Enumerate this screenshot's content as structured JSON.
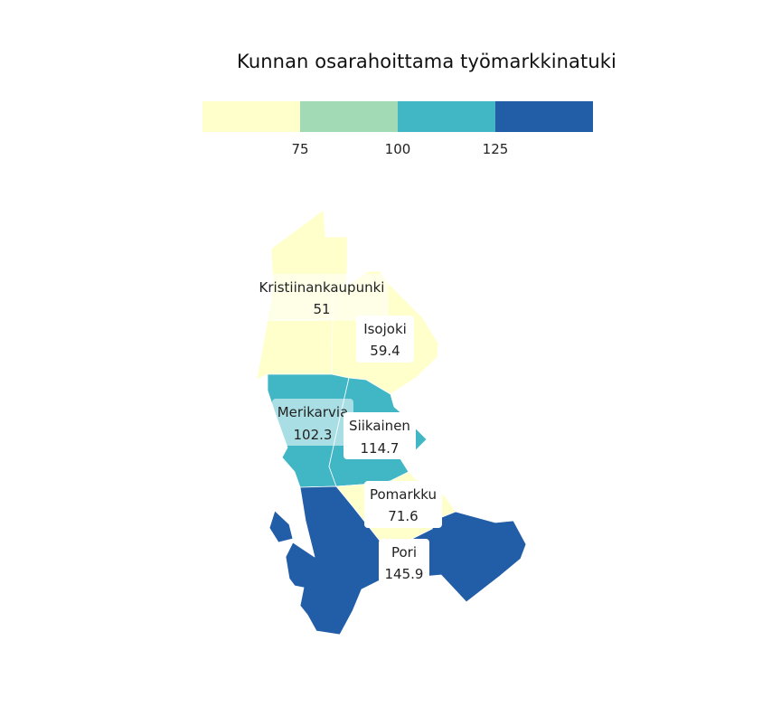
{
  "chart_data": {
    "type": "choropleth",
    "title": "Kunnan osarahoittama työmarkkinatuki",
    "legend": {
      "breaks": [
        75,
        100,
        125
      ],
      "tick_labels": [
        "75",
        "100",
        "125"
      ],
      "colors": [
        "#ffffcc",
        "#a1dab4",
        "#41b6c4",
        "#225ea8"
      ]
    },
    "regions": [
      {
        "name": "Kristiinankaupunki",
        "value": 51,
        "value_label": "51",
        "color": "#ffffcc"
      },
      {
        "name": "Isojoki",
        "value": 59.4,
        "value_label": "59.4",
        "color": "#ffffcc"
      },
      {
        "name": "Merikarvia",
        "value": 102.3,
        "value_label": "102.3",
        "color": "#41b6c4"
      },
      {
        "name": "Siikainen",
        "value": 114.7,
        "value_label": "114.7",
        "color": "#41b6c4"
      },
      {
        "name": "Pomarkku",
        "value": 71.6,
        "value_label": "71.6",
        "color": "#ffffcc"
      },
      {
        "name": "Pori",
        "value": 145.9,
        "value_label": "145.9",
        "color": "#225ea8"
      }
    ]
  }
}
